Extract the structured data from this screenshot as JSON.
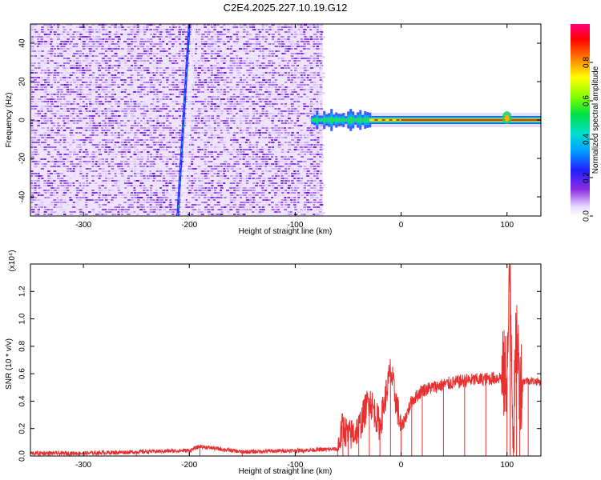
{
  "title": "C2E4.2025.227.10.19.G12",
  "chart_data": [
    {
      "type": "heatmap",
      "xlabel": "Height of straight line (km)",
      "ylabel": "Frequency (Hz)",
      "xlim": [
        -350,
        132
      ],
      "ylim": [
        -50,
        50
      ],
      "xticks": [
        -300,
        -200,
        -100,
        0,
        100
      ],
      "xtick_labels": [
        "-300",
        "-200",
        "-100",
        "0",
        "100"
      ],
      "yticks": [
        -40,
        -20,
        0,
        20,
        40
      ],
      "ytick_labels": [
        "-40",
        "-20",
        "0",
        "20",
        "40"
      ],
      "colorbar": {
        "label": "Normalized spectral amplitude",
        "range": [
          0,
          1
        ],
        "ticks": [
          0.0,
          0.2,
          0.4,
          0.6,
          0.8
        ],
        "tick_labels": [
          "0.0",
          "0.2",
          "0.4",
          "0.6",
          "0.8"
        ]
      },
      "noise_region_x": [
        -350,
        -80
      ],
      "streak": {
        "x_start": -211,
        "y_start": -50,
        "x_end": -200,
        "y_end": 50
      },
      "signal_band": {
        "x_start": -85,
        "x_end": 132,
        "frequency": 0
      }
    },
    {
      "type": "line",
      "xlabel": "Height of straight line (km)",
      "ylabel": "SNR (10 * v/v)",
      "scale_label": "(x10⁴)",
      "xlim": [
        -350,
        132
      ],
      "ylim": [
        0,
        1.4
      ],
      "xticks": [
        -300,
        -200,
        -100,
        0,
        100
      ],
      "xtick_labels": [
        "-300",
        "-200",
        "-100",
        "0",
        "100"
      ],
      "yticks": [
        0.0,
        0.2,
        0.4,
        0.6,
        0.8,
        1.0,
        1.2
      ],
      "ytick_labels": [
        "0.0",
        "0.2",
        "0.4",
        "0.6",
        "0.8",
        "1.0",
        "1.2"
      ],
      "color": "#e83030",
      "x": [
        -350,
        -300,
        -250,
        -200,
        -190,
        -150,
        -100,
        -60,
        -55,
        -50,
        -40,
        -30,
        -20,
        -10,
        0,
        10,
        20,
        40,
        60,
        80,
        100,
        103,
        106,
        109,
        112,
        120,
        132
      ],
      "y": [
        0.02,
        0.02,
        0.03,
        0.04,
        0.07,
        0.03,
        0.04,
        0.05,
        0.22,
        0.14,
        0.2,
        0.42,
        0.22,
        0.62,
        0.2,
        0.4,
        0.48,
        0.52,
        0.55,
        0.56,
        0.58,
        1.35,
        0.1,
        0.9,
        0.54,
        0.55,
        0.54
      ]
    }
  ]
}
